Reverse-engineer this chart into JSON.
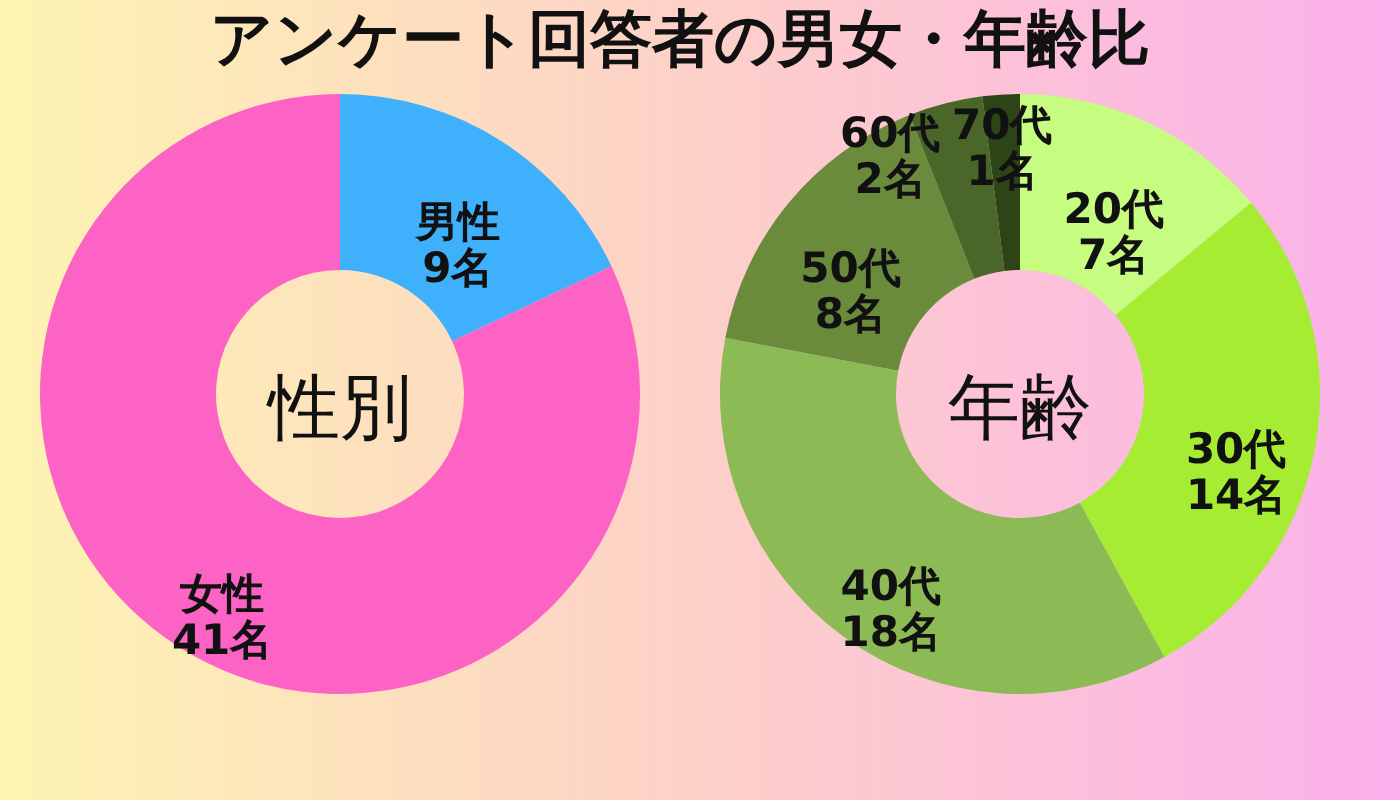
{
  "chart_data": [
    {
      "type": "donut",
      "title": "アンケート回答者の男女・年齢比",
      "categories": [
        "男性",
        "女性"
      ],
      "values": [
        9,
        41
      ],
      "colors": [
        "#3fb0fc",
        "#fd63c4"
      ],
      "value_labels": [
        "9名",
        "41名"
      ],
      "annotations": [
        "性別"
      ]
    },
    {
      "type": "donut",
      "categories": [
        "20代",
        "30代",
        "40代",
        "50代",
        "60代",
        "70代"
      ],
      "values": [
        7,
        14,
        18,
        8,
        2,
        1
      ],
      "colors": [
        "#c6fd80",
        "#a6ec33",
        "#8cbb55",
        "#6a8a3c",
        "#4a6628",
        "#2d4416"
      ],
      "value_labels": [
        "7名",
        "14名",
        "18名",
        "8名",
        "2名",
        "1名"
      ],
      "annotations": [
        "年齢"
      ]
    }
  ]
}
